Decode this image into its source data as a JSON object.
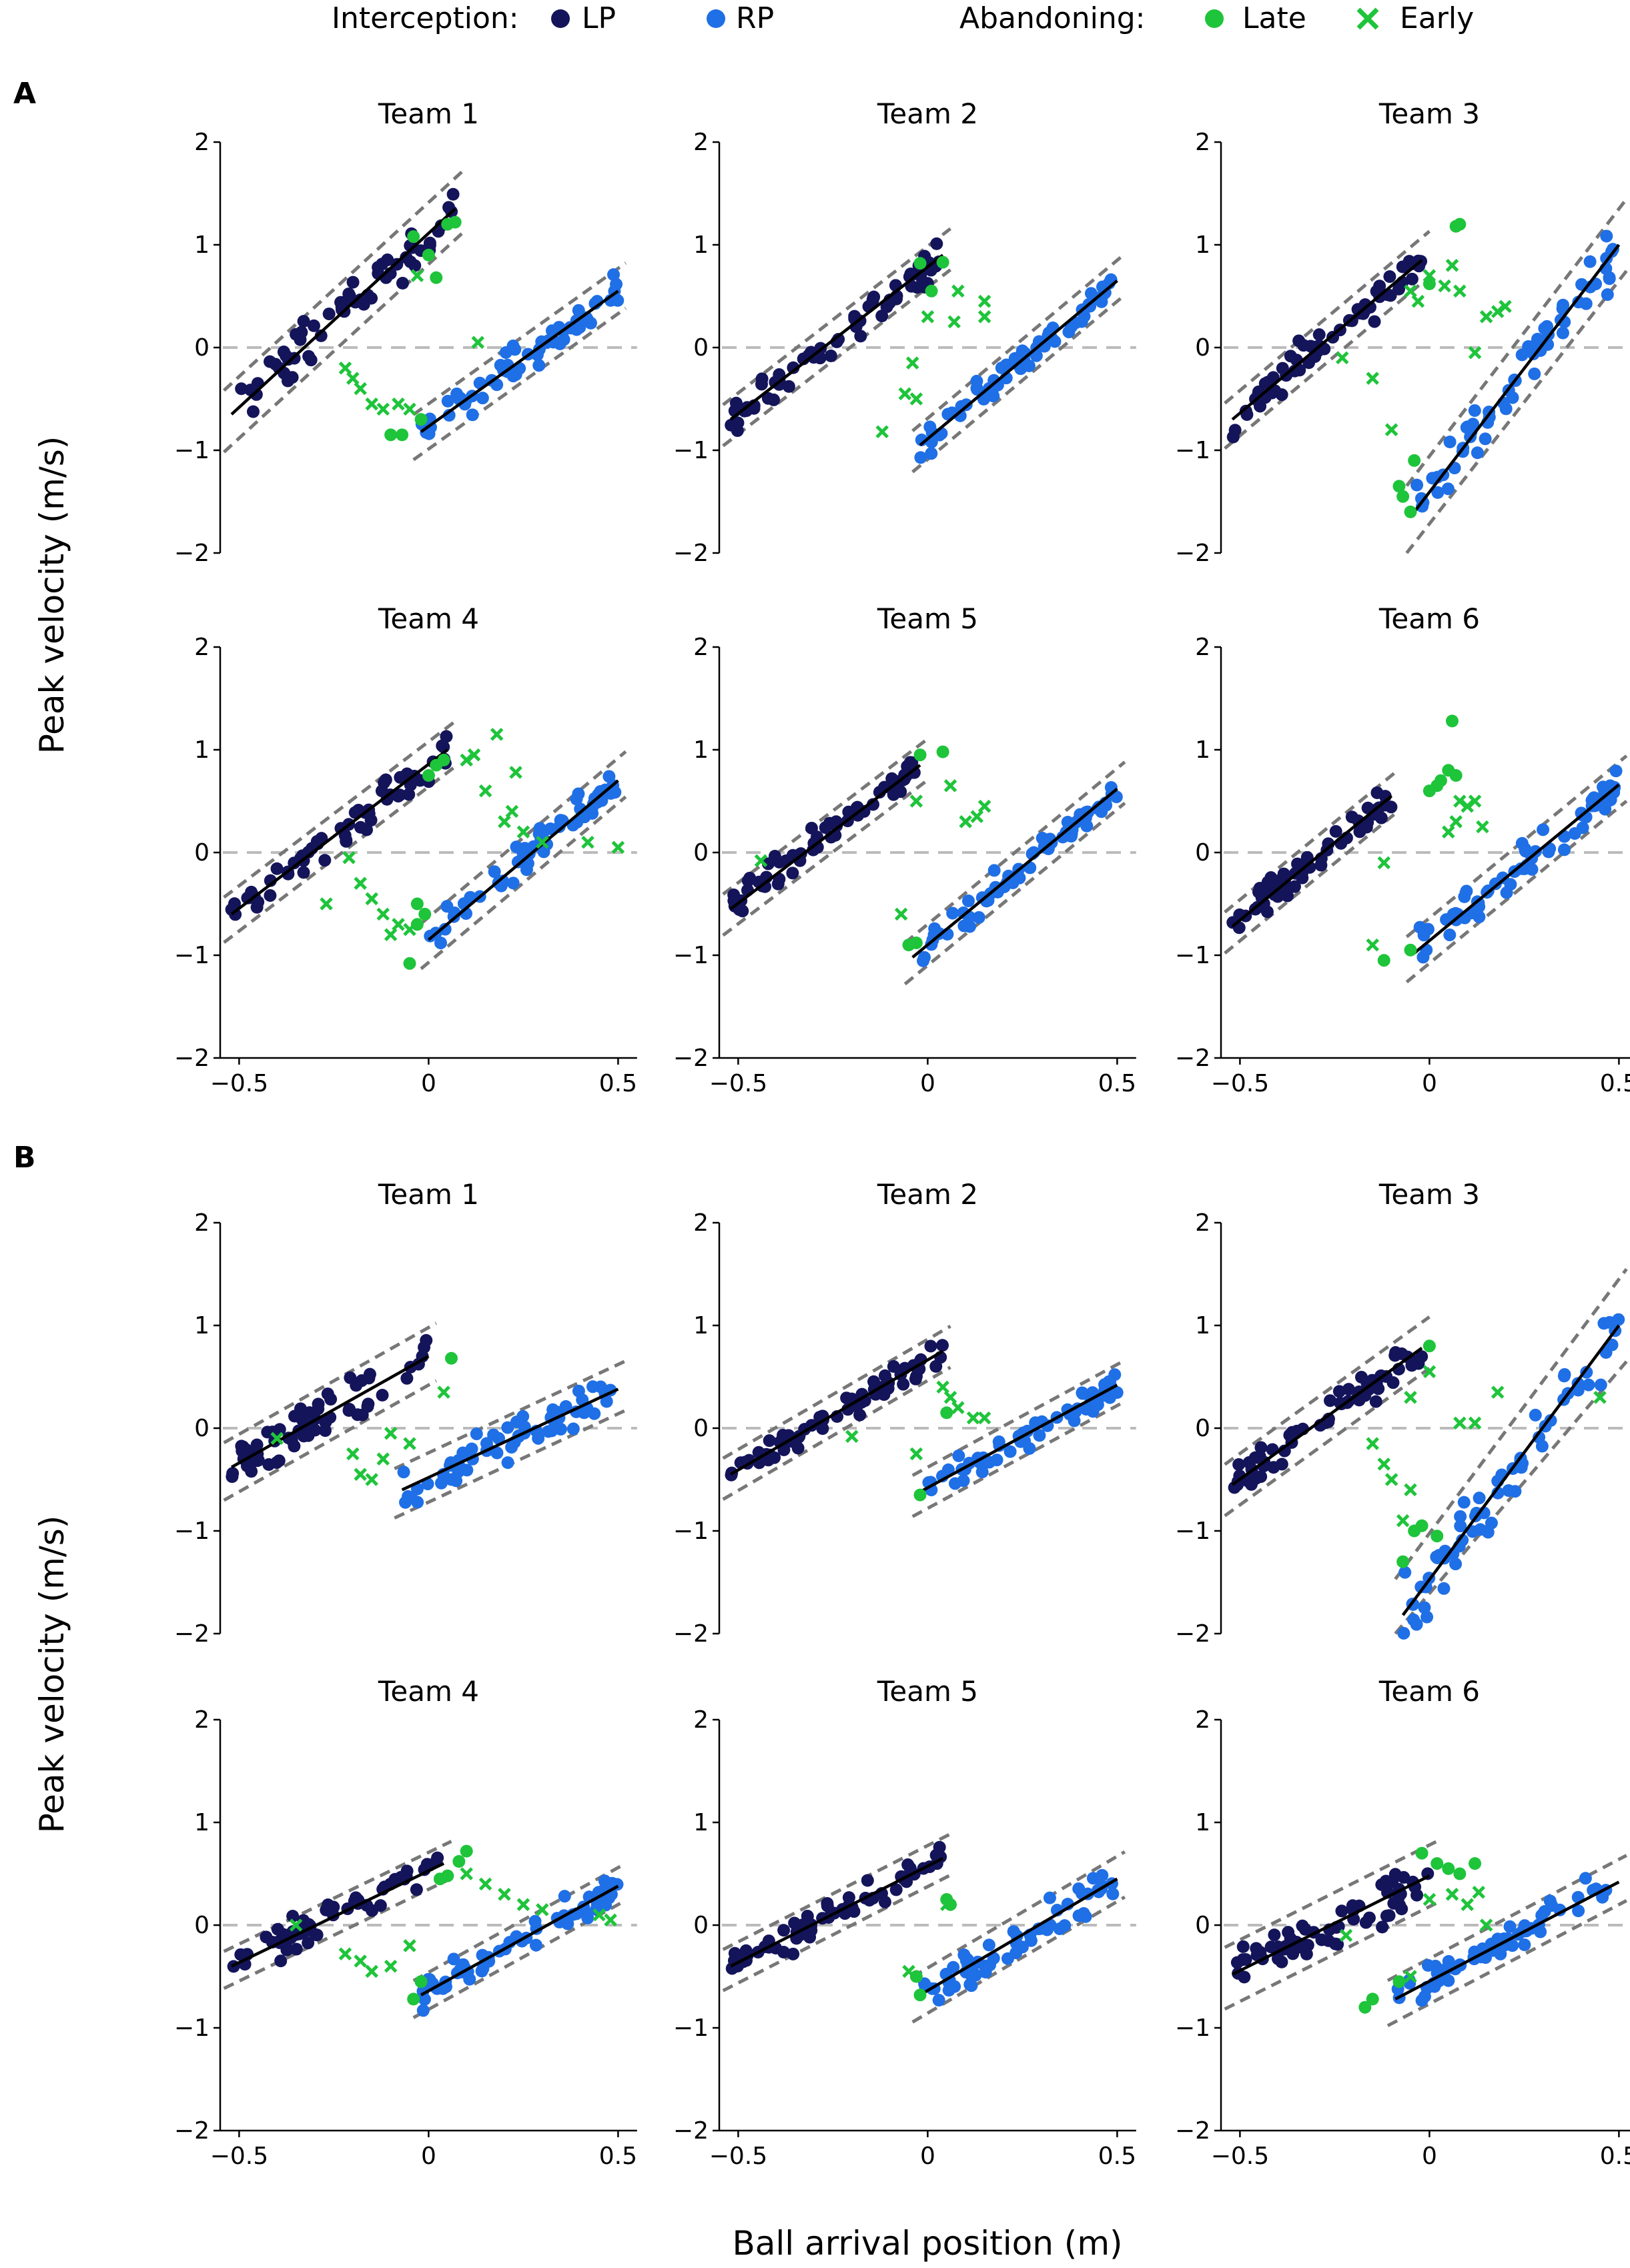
{
  "colors": {
    "lp": "#14145a",
    "rp": "#1f6fe6",
    "late": "#1ec43a",
    "early": "#1ec43a"
  },
  "legend": {
    "interception_label": "Interception:",
    "lp_label": "LP",
    "rp_label": "RP",
    "abandoning_label": "Abandoning:",
    "late_label": "Late",
    "early_label": "Early"
  },
  "axes": {
    "xlabel": "Ball arrival position (m)",
    "ylabel": "Peak velocity (m/s)",
    "xticks": [
      -0.5,
      0,
      0.5
    ],
    "xtick_labels": [
      "−0.5",
      "0",
      "0.5"
    ],
    "yticks": [
      2,
      1,
      0,
      -1,
      -2
    ],
    "ytick_labels": [
      "2",
      "1",
      "0",
      "−1",
      "−2"
    ],
    "xlim": [
      -0.55,
      0.55
    ],
    "ylim": [
      -2,
      2
    ]
  },
  "chart_data": {
    "type": "scatter",
    "panel_groups": [
      {
        "letter": "A",
        "panels": [
          {
            "title": "Team 1",
            "lp_fit": [
              -0.52,
              -0.65,
              0.07,
              1.35
            ],
            "rp_fit": [
              -0.02,
              -0.82,
              0.5,
              0.55
            ],
            "lp_ci": 0.3,
            "rp_ci": 0.22
          },
          {
            "title": "Team 2",
            "lp_fit": [
              -0.52,
              -0.7,
              0.04,
              0.9
            ],
            "rp_fit": [
              -0.02,
              -0.95,
              0.5,
              0.65
            ],
            "lp_ci": 0.2,
            "rp_ci": 0.2
          },
          {
            "title": "Team 3",
            "lp_fit": [
              -0.52,
              -0.7,
              -0.02,
              0.85
            ],
            "rp_fit": [
              -0.04,
              -1.6,
              0.5,
              1.0
            ],
            "lp_ci": 0.22,
            "rp_ci": 0.35
          },
          {
            "title": "Team 4",
            "lp_fit": [
              -0.52,
              -0.6,
              0.05,
              1.0
            ],
            "rp_fit": [
              0.0,
              -0.85,
              0.5,
              0.7
            ],
            "lp_ci": 0.22,
            "rp_ci": 0.22
          },
          {
            "title": "Team 5",
            "lp_fit": [
              -0.52,
              -0.55,
              -0.02,
              0.85
            ],
            "rp_fit": [
              -0.04,
              -1.02,
              0.5,
              0.62
            ],
            "lp_ci": 0.2,
            "rp_ci": 0.2
          },
          {
            "title": "Team 6",
            "lp_fit": [
              -0.52,
              -0.72,
              -0.1,
              0.55
            ],
            "rp_fit": [
              -0.04,
              -0.98,
              0.5,
              0.66
            ],
            "lp_ci": 0.2,
            "rp_ci": 0.22
          }
        ]
      },
      {
        "letter": "B",
        "panels": [
          {
            "title": "Team 1",
            "lp_fit": [
              -0.52,
              -0.38,
              0.0,
              0.7
            ],
            "rp_fit": [
              -0.07,
              -0.6,
              0.5,
              0.38
            ],
            "lp_ci": 0.28,
            "rp_ci": 0.24
          },
          {
            "title": "Team 2",
            "lp_fit": [
              -0.52,
              -0.45,
              0.04,
              0.75
            ],
            "rp_fit": [
              -0.02,
              -0.62,
              0.5,
              0.42
            ],
            "lp_ci": 0.2,
            "rp_ci": 0.2
          },
          {
            "title": "Team 3",
            "lp_fit": [
              -0.52,
              -0.55,
              -0.02,
              0.78
            ],
            "rp_fit": [
              -0.07,
              -1.82,
              0.5,
              1.0
            ],
            "lp_ci": 0.25,
            "rp_ci": 0.45
          },
          {
            "title": "Team 4",
            "lp_fit": [
              -0.52,
              -0.4,
              0.04,
              0.6
            ],
            "rp_fit": [
              -0.02,
              -0.68,
              0.5,
              0.38
            ],
            "lp_ci": 0.18,
            "rp_ci": 0.18
          },
          {
            "title": "Team 5",
            "lp_fit": [
              -0.52,
              -0.4,
              0.04,
              0.65
            ],
            "rp_fit": [
              -0.02,
              -0.68,
              0.5,
              0.45
            ],
            "lp_ci": 0.2,
            "rp_ci": 0.22
          },
          {
            "title": "Team 6",
            "lp_fit": [
              -0.52,
              -0.48,
              0.0,
              0.48
            ],
            "rp_fit": [
              -0.09,
              -0.72,
              0.5,
              0.42
            ],
            "lp_ci": 0.3,
            "rp_ci": 0.22
          }
        ]
      }
    ],
    "abandoning": {
      "A": [
        {
          "late": [
            [
              0.02,
              0.68
            ],
            [
              0.05,
              1.2
            ],
            [
              0.07,
              1.22
            ],
            [
              -0.04,
              1.08
            ],
            [
              -0.07,
              -0.85
            ],
            [
              -0.1,
              -0.85
            ],
            [
              -0.02,
              -0.7
            ],
            [
              0.0,
              0.9
            ]
          ],
          "early": [
            [
              -0.2,
              -0.3
            ],
            [
              -0.18,
              -0.4
            ],
            [
              -0.15,
              -0.55
            ],
            [
              -0.12,
              -0.6
            ],
            [
              -0.08,
              -0.55
            ],
            [
              -0.05,
              -0.6
            ],
            [
              0.13,
              0.05
            ],
            [
              -0.22,
              -0.2
            ],
            [
              -0.03,
              0.7
            ]
          ]
        },
        {
          "late": [
            [
              -0.02,
              0.82
            ],
            [
              0.01,
              0.55
            ],
            [
              0.04,
              0.83
            ]
          ],
          "early": [
            [
              -0.06,
              -0.45
            ],
            [
              -0.04,
              -0.15
            ],
            [
              -0.03,
              -0.5
            ],
            [
              -0.12,
              -0.82
            ],
            [
              0.0,
              0.3
            ],
            [
              0.08,
              0.55
            ],
            [
              0.07,
              0.25
            ],
            [
              0.15,
              0.45
            ],
            [
              0.15,
              0.3
            ]
          ]
        },
        {
          "late": [
            [
              0.08,
              1.2
            ],
            [
              0.07,
              1.18
            ],
            [
              0.0,
              0.62
            ],
            [
              -0.08,
              -1.35
            ],
            [
              -0.05,
              -1.6
            ],
            [
              -0.07,
              -1.45
            ],
            [
              -0.04,
              -1.1
            ]
          ],
          "early": [
            [
              0.0,
              0.7
            ],
            [
              0.04,
              0.6
            ],
            [
              -0.05,
              0.55
            ],
            [
              -0.03,
              0.45
            ],
            [
              0.06,
              0.8
            ],
            [
              0.08,
              0.55
            ],
            [
              0.15,
              0.3
            ],
            [
              -0.1,
              -0.8
            ],
            [
              -0.15,
              -0.3
            ],
            [
              -0.23,
              -0.1
            ],
            [
              0.12,
              -0.05
            ],
            [
              0.18,
              0.35
            ],
            [
              0.2,
              0.4
            ]
          ]
        },
        {
          "late": [
            [
              0.0,
              0.75
            ],
            [
              0.02,
              0.85
            ],
            [
              0.04,
              0.9
            ],
            [
              -0.03,
              -0.5
            ],
            [
              -0.03,
              -0.7
            ],
            [
              -0.05,
              -1.08
            ],
            [
              -0.01,
              -0.6
            ]
          ],
          "early": [
            [
              -0.18,
              -0.3
            ],
            [
              -0.15,
              -0.45
            ],
            [
              -0.12,
              -0.6
            ],
            [
              -0.1,
              -0.8
            ],
            [
              -0.08,
              -0.7
            ],
            [
              -0.05,
              -0.75
            ],
            [
              0.1,
              0.9
            ],
            [
              0.12,
              0.95
            ],
            [
              0.18,
              1.15
            ],
            [
              0.15,
              0.6
            ],
            [
              0.22,
              0.4
            ],
            [
              0.2,
              0.3
            ],
            [
              0.25,
              0.2
            ],
            [
              0.3,
              0.1
            ],
            [
              0.42,
              0.1
            ],
            [
              0.5,
              0.05
            ],
            [
              -0.27,
              -0.5
            ],
            [
              -0.21,
              -0.05
            ],
            [
              0.23,
              0.78
            ]
          ]
        },
        {
          "late": [
            [
              -0.02,
              0.95
            ],
            [
              0.04,
              0.98
            ],
            [
              -0.03,
              -0.88
            ],
            [
              -0.05,
              -0.9
            ]
          ],
          "early": [
            [
              -0.07,
              -0.6
            ],
            [
              0.06,
              0.65
            ],
            [
              0.1,
              0.3
            ],
            [
              0.13,
              0.35
            ],
            [
              0.15,
              0.45
            ],
            [
              -0.44,
              -0.08
            ],
            [
              -0.03,
              0.5
            ]
          ]
        },
        {
          "late": [
            [
              0.0,
              0.6
            ],
            [
              0.02,
              0.65
            ],
            [
              0.03,
              0.7
            ],
            [
              0.05,
              0.8
            ],
            [
              0.06,
              1.28
            ],
            [
              0.07,
              0.75
            ],
            [
              -0.12,
              -1.05
            ],
            [
              -0.05,
              -0.95
            ]
          ],
          "early": [
            [
              -0.12,
              -0.1
            ],
            [
              -0.15,
              -0.9
            ],
            [
              0.05,
              0.2
            ],
            [
              0.07,
              0.3
            ],
            [
              0.08,
              0.5
            ],
            [
              0.1,
              0.45
            ],
            [
              0.14,
              0.25
            ],
            [
              0.12,
              0.5
            ]
          ]
        }
      ],
      "B": [
        {
          "late": [
            [
              0.06,
              0.68
            ]
          ],
          "early": [
            [
              -0.2,
              -0.25
            ],
            [
              -0.18,
              -0.45
            ],
            [
              -0.15,
              -0.5
            ],
            [
              -0.12,
              -0.3
            ],
            [
              -0.1,
              -0.05
            ],
            [
              -0.05,
              -0.15
            ],
            [
              0.04,
              0.35
            ],
            [
              -0.4,
              -0.1
            ]
          ]
        },
        {
          "late": [
            [
              -0.02,
              -0.65
            ],
            [
              0.05,
              0.15
            ]
          ],
          "early": [
            [
              -0.2,
              -0.08
            ],
            [
              0.04,
              0.4
            ],
            [
              0.06,
              0.3
            ],
            [
              0.08,
              0.2
            ],
            [
              0.12,
              0.1
            ],
            [
              0.15,
              0.1
            ],
            [
              -0.03,
              -0.25
            ]
          ]
        },
        {
          "late": [
            [
              0.0,
              0.8
            ],
            [
              -0.02,
              -0.95
            ],
            [
              -0.04,
              -1.0
            ],
            [
              -0.07,
              -1.3
            ],
            [
              0.02,
              -1.05
            ]
          ],
          "early": [
            [
              -0.15,
              -0.15
            ],
            [
              -0.12,
              -0.35
            ],
            [
              -0.1,
              -0.5
            ],
            [
              -0.05,
              -0.6
            ],
            [
              -0.07,
              -0.9
            ],
            [
              0.08,
              0.05
            ],
            [
              0.12,
              0.05
            ],
            [
              0.18,
              0.35
            ],
            [
              0.45,
              0.3
            ],
            [
              -0.05,
              0.3
            ],
            [
              0.0,
              0.55
            ]
          ]
        },
        {
          "late": [
            [
              0.03,
              0.45
            ],
            [
              0.08,
              0.62
            ],
            [
              0.1,
              0.72
            ],
            [
              0.05,
              0.48
            ],
            [
              -0.02,
              -0.55
            ],
            [
              -0.04,
              -0.72
            ]
          ],
          "early": [
            [
              -0.22,
              -0.28
            ],
            [
              -0.18,
              -0.35
            ],
            [
              -0.15,
              -0.45
            ],
            [
              -0.1,
              -0.4
            ],
            [
              -0.05,
              -0.2
            ],
            [
              0.1,
              0.5
            ],
            [
              0.15,
              0.4
            ],
            [
              0.2,
              0.3
            ],
            [
              0.25,
              0.2
            ],
            [
              0.3,
              0.15
            ],
            [
              0.45,
              0.1
            ],
            [
              0.48,
              0.05
            ],
            [
              -0.35,
              0.0
            ]
          ]
        },
        {
          "late": [
            [
              0.05,
              0.25
            ],
            [
              0.06,
              0.2
            ],
            [
              -0.02,
              -0.68
            ],
            [
              -0.03,
              -0.5
            ]
          ],
          "early": [
            [
              0.05,
              0.2
            ],
            [
              -0.05,
              -0.45
            ]
          ]
        },
        {
          "late": [
            [
              -0.02,
              0.7
            ],
            [
              0.02,
              0.6
            ],
            [
              0.05,
              0.55
            ],
            [
              0.08,
              0.5
            ],
            [
              0.12,
              0.6
            ],
            [
              -0.17,
              -0.8
            ],
            [
              -0.15,
              -0.72
            ],
            [
              -0.08,
              -0.55
            ]
          ],
          "early": [
            [
              0.0,
              0.25
            ],
            [
              0.06,
              0.3
            ],
            [
              0.1,
              0.2
            ],
            [
              0.13,
              0.32
            ],
            [
              0.15,
              0.0
            ],
            [
              -0.22,
              -0.1
            ],
            [
              -0.05,
              -0.5
            ]
          ]
        }
      ]
    }
  }
}
